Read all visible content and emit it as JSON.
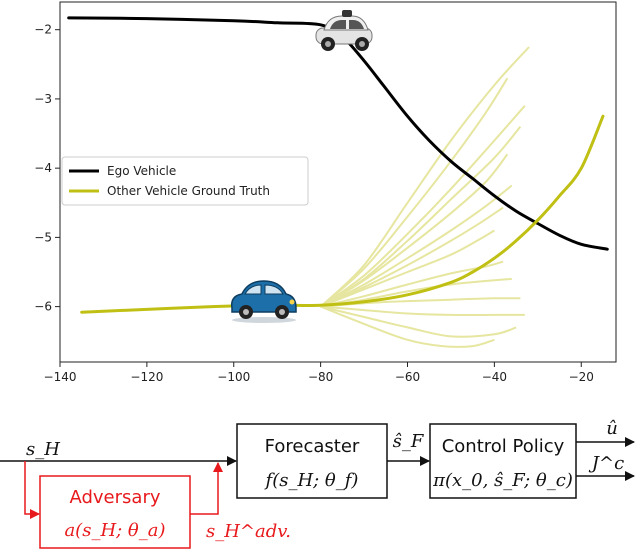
{
  "chart_data": {
    "type": "line",
    "title": "",
    "xlabel": "",
    "ylabel": "",
    "xlim": [
      -140,
      -12
    ],
    "ylim": [
      -6.8,
      -1.6
    ],
    "xticks": [
      -140,
      -120,
      -100,
      -80,
      -60,
      -40,
      -20
    ],
    "yticks": [
      -2,
      -3,
      -4,
      -5,
      -6
    ],
    "grid": false,
    "legend_position": "middle-left",
    "series": [
      {
        "name": "Ego Vehicle",
        "color": "#000000",
        "x": [
          -138,
          -120,
          -100,
          -90,
          -80,
          -75,
          -70,
          -65,
          -60,
          -55,
          -50,
          -45,
          -40,
          -35,
          -30,
          -25,
          -20,
          -14
        ],
        "y": [
          -1.83,
          -1.84,
          -1.87,
          -1.9,
          -1.93,
          -2.1,
          -2.45,
          -2.85,
          -3.25,
          -3.6,
          -3.9,
          -4.15,
          -4.4,
          -4.62,
          -4.8,
          -4.97,
          -5.1,
          -5.17
        ]
      },
      {
        "name": "Other Vehicle Ground Truth",
        "color": "#c0c014",
        "x": [
          -135,
          -120,
          -105,
          -95,
          -88,
          -80,
          -70,
          -60,
          -50,
          -45,
          -40,
          -35,
          -30,
          -25,
          -20,
          -15
        ],
        "y": [
          -6.08,
          -6.04,
          -6.0,
          -5.98,
          -5.98,
          -5.98,
          -5.93,
          -5.83,
          -5.65,
          -5.5,
          -5.3,
          -5.05,
          -4.75,
          -4.4,
          -4.0,
          -3.25
        ]
      }
    ],
    "forecast_samples": {
      "color": "#e6e6a0",
      "lines": [
        {
          "x": [
            -80,
            -70,
            -60,
            -50,
            -40,
            -32
          ],
          "y": [
            -6.0,
            -5.4,
            -4.5,
            -3.6,
            -2.8,
            -2.25
          ]
        },
        {
          "x": [
            -80,
            -70,
            -60,
            -50,
            -42,
            -37
          ],
          "y": [
            -6.0,
            -5.45,
            -4.7,
            -3.9,
            -3.2,
            -2.7
          ]
        },
        {
          "x": [
            -80,
            -70,
            -60,
            -50,
            -40,
            -33
          ],
          "y": [
            -6.0,
            -5.55,
            -4.95,
            -4.3,
            -3.6,
            -3.1
          ]
        },
        {
          "x": [
            -80,
            -70,
            -60,
            -50,
            -40,
            -34
          ],
          "y": [
            -6.0,
            -5.6,
            -5.05,
            -4.45,
            -3.85,
            -3.4
          ]
        },
        {
          "x": [
            -80,
            -70,
            -60,
            -50,
            -42,
            -37
          ],
          "y": [
            -6.0,
            -5.62,
            -5.15,
            -4.65,
            -4.2,
            -3.8
          ]
        },
        {
          "x": [
            -80,
            -70,
            -60,
            -50,
            -42,
            -36
          ],
          "y": [
            -6.0,
            -5.68,
            -5.3,
            -4.9,
            -4.55,
            -4.25
          ]
        },
        {
          "x": [
            -80,
            -70,
            -60,
            -50,
            -43,
            -38
          ],
          "y": [
            -6.0,
            -5.72,
            -5.4,
            -5.05,
            -4.78,
            -4.57
          ]
        },
        {
          "x": [
            -80,
            -70,
            -60,
            -50,
            -44,
            -40
          ],
          "y": [
            -6.0,
            -5.75,
            -5.5,
            -5.25,
            -5.05,
            -4.9
          ]
        },
        {
          "x": [
            -80,
            -70,
            -60,
            -50,
            -42,
            -38
          ],
          "y": [
            -6.0,
            -5.85,
            -5.68,
            -5.52,
            -5.42,
            -5.35
          ]
        },
        {
          "x": [
            -80,
            -70,
            -60,
            -50,
            -40,
            -36
          ],
          "y": [
            -6.0,
            -5.9,
            -5.78,
            -5.68,
            -5.62,
            -5.6
          ]
        },
        {
          "x": [
            -80,
            -70,
            -60,
            -50,
            -40,
            -34
          ],
          "y": [
            -6.0,
            -5.95,
            -5.92,
            -5.9,
            -5.88,
            -5.88
          ]
        },
        {
          "x": [
            -80,
            -70,
            -60,
            -50,
            -40,
            -33
          ],
          "y": [
            -6.0,
            -6.05,
            -6.1,
            -6.12,
            -6.12,
            -6.12
          ]
        },
        {
          "x": [
            -80,
            -70,
            -60,
            -50,
            -40,
            -35
          ],
          "y": [
            -6.0,
            -6.15,
            -6.3,
            -6.43,
            -6.4,
            -6.3
          ]
        },
        {
          "x": [
            -80,
            -70,
            -60,
            -52,
            -45,
            -40
          ],
          "y": [
            -6.0,
            -6.25,
            -6.48,
            -6.57,
            -6.57,
            -6.48
          ]
        }
      ]
    }
  },
  "diagram": {
    "input_label": "s_H",
    "forecaster": {
      "title": "Forecaster",
      "formula": "f(s_H; θ_f)"
    },
    "forecast_output_label": "ŝ_F",
    "control_policy": {
      "title": "Control Policy",
      "formula": "π(x_0, ŝ_F; θ_c)"
    },
    "output_u": "û",
    "output_j": "J^c",
    "adversary": {
      "title": "Adversary",
      "formula": "a(s_H; θ_a)",
      "color": "#e8191c"
    },
    "adversary_output_label": "s_H^adv."
  },
  "icons": {
    "ego_car": "self-driving-car-icon",
    "other_car": "blue-car-icon"
  }
}
